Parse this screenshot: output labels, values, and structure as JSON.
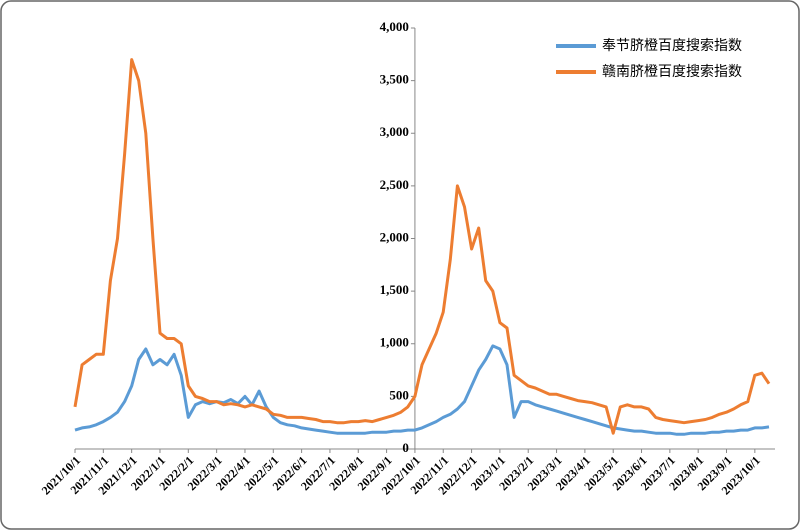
{
  "chart_data": {
    "type": "line",
    "categories": [
      "2021/10/1",
      null,
      null,
      null,
      "2021/11/1",
      null,
      null,
      null,
      "2021/12/1",
      null,
      null,
      null,
      "2022/1/1",
      null,
      null,
      null,
      "2022/2/1",
      null,
      null,
      null,
      "2022/3/1",
      null,
      null,
      null,
      "2022/4/1",
      null,
      null,
      null,
      "2022/5/1",
      null,
      null,
      null,
      "2022/6/1",
      null,
      null,
      null,
      "2022/7/1",
      null,
      null,
      null,
      "2022/8/1",
      null,
      null,
      null,
      "2022/9/1",
      null,
      null,
      null,
      "2022/10/1",
      null,
      null,
      null,
      "2022/11/1",
      null,
      null,
      null,
      "2022/12/1",
      null,
      null,
      null,
      "2023/1/1",
      null,
      null,
      null,
      "2023/2/1",
      null,
      null,
      null,
      "2023/3/1",
      null,
      null,
      null,
      "2023/4/1",
      null,
      null,
      null,
      "2023/5/1",
      null,
      null,
      null,
      "2023/6/1",
      null,
      null,
      null,
      "2023/7/1",
      null,
      null,
      null,
      "2023/8/1",
      null,
      null,
      null,
      "2023/9/1",
      null,
      null,
      null,
      "2023/10/1",
      null,
      null
    ],
    "series": [
      {
        "name": "奉节脐橙百度搜索指数",
        "color": "#5b9bd5",
        "values": [
          180,
          200,
          210,
          230,
          260,
          300,
          350,
          450,
          600,
          850,
          950,
          800,
          850,
          800,
          900,
          700,
          300,
          420,
          450,
          430,
          450,
          440,
          470,
          430,
          500,
          420,
          550,
          400,
          300,
          250,
          230,
          220,
          200,
          190,
          180,
          170,
          160,
          150,
          150,
          150,
          150,
          150,
          160,
          160,
          160,
          170,
          170,
          180,
          180,
          200,
          230,
          260,
          300,
          330,
          380,
          450,
          600,
          750,
          850,
          980,
          950,
          800,
          300,
          450,
          450,
          420,
          400,
          380,
          360,
          340,
          320,
          300,
          280,
          260,
          240,
          220,
          200,
          190,
          180,
          170,
          170,
          160,
          150,
          150,
          150,
          140,
          140,
          150,
          150,
          150,
          160,
          160,
          170,
          170,
          180,
          180,
          200,
          200,
          210
        ]
      },
      {
        "name": "赣南脐橙百度搜索指数",
        "color": "#ed7d31",
        "values": [
          400,
          800,
          850,
          900,
          900,
          1600,
          2000,
          2800,
          3700,
          3500,
          3000,
          2000,
          1100,
          1050,
          1050,
          1000,
          600,
          500,
          480,
          450,
          450,
          420,
          430,
          420,
          400,
          420,
          400,
          380,
          330,
          320,
          300,
          300,
          300,
          290,
          280,
          260,
          260,
          250,
          250,
          260,
          260,
          270,
          260,
          280,
          300,
          320,
          350,
          400,
          500,
          800,
          950,
          1100,
          1300,
          1800,
          2500,
          2300,
          1900,
          2100,
          1600,
          1500,
          1200,
          1150,
          700,
          650,
          600,
          580,
          550,
          520,
          520,
          500,
          480,
          460,
          450,
          440,
          420,
          400,
          150,
          400,
          420,
          400,
          400,
          380,
          300,
          280,
          270,
          260,
          250,
          260,
          270,
          280,
          300,
          330,
          350,
          380,
          420,
          450,
          700,
          720,
          620
        ]
      }
    ],
    "ylim": [
      0,
      4000
    ],
    "yticks": [
      0,
      500,
      {
        "value": 1000,
        "label": "1,000"
      },
      {
        "value": 1500,
        "label": "1,500"
      },
      {
        "value": 2000,
        "label": "2,000"
      },
      {
        "value": 2500,
        "label": "2,500"
      },
      {
        "value": 3000,
        "label": "3,000"
      },
      {
        "value": 3500,
        "label": "3,500"
      },
      {
        "value": 4000,
        "label": "4,000"
      }
    ],
    "y_axis_at": "2022/10/1",
    "legend": "upper right"
  }
}
